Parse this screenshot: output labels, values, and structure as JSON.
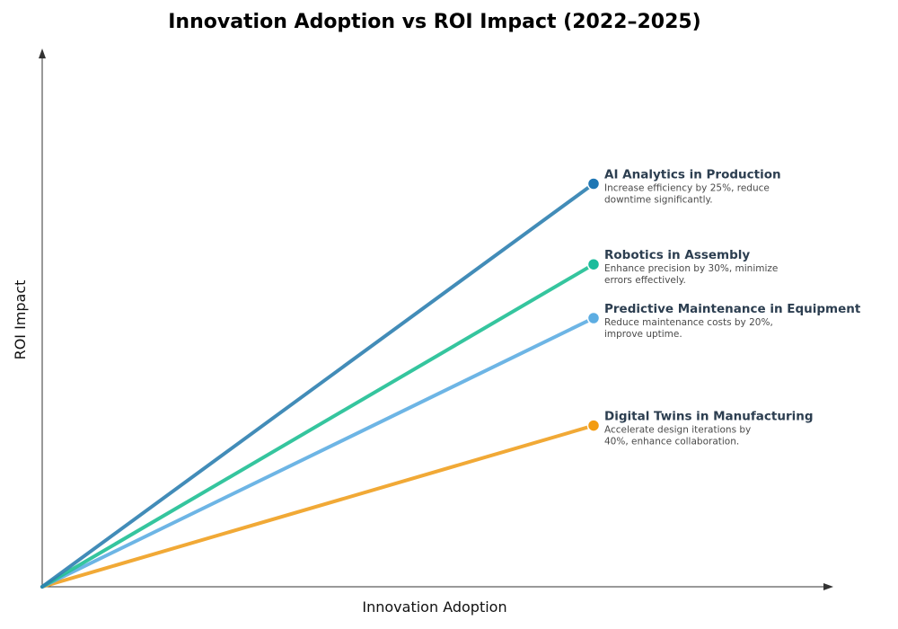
{
  "chart_data": {
    "type": "line",
    "title": "Innovation Adoption vs ROI Impact (2022–2025)",
    "xlabel": "Innovation Adoption",
    "ylabel": "ROI Impact",
    "grid": false,
    "legend": "none",
    "x_ticks_shown": false,
    "y_ticks_shown": false,
    "series": [
      {
        "name": "AI Analytics in Production",
        "description_lines": [
          "Increase efficiency by 25%, reduce",
          "downtime significantly."
        ],
        "color": "#2e7fb0",
        "marker_color": "#1f77b4",
        "points": [
          [
            0,
            0
          ],
          [
            0.68,
            0.75
          ]
        ]
      },
      {
        "name": "Robotics in Assembly",
        "description_lines": [
          "Enhance precision by 30%, minimize",
          "errors effectively."
        ],
        "color": "#1fbf94",
        "marker_color": "#1abc9c",
        "points": [
          [
            0,
            0
          ],
          [
            0.68,
            0.6
          ]
        ]
      },
      {
        "name": "Predictive Maintenance in Equipment",
        "description_lines": [
          "Reduce maintenance costs by 20%,",
          "improve uptime."
        ],
        "color": "#5dade2",
        "marker_color": "#5dade2",
        "points": [
          [
            0,
            0
          ],
          [
            0.68,
            0.5
          ]
        ]
      },
      {
        "name": "Digital Twins in Manufacturing",
        "description_lines": [
          "Accelerate design iterations by",
          "40%, enhance collaboration."
        ],
        "color": "#f0a020",
        "marker_color": "#f39c12",
        "points": [
          [
            0,
            0
          ],
          [
            0.68,
            0.3
          ]
        ]
      }
    ],
    "xlim": [
      0,
      1
    ],
    "ylim": [
      0,
      1
    ]
  }
}
